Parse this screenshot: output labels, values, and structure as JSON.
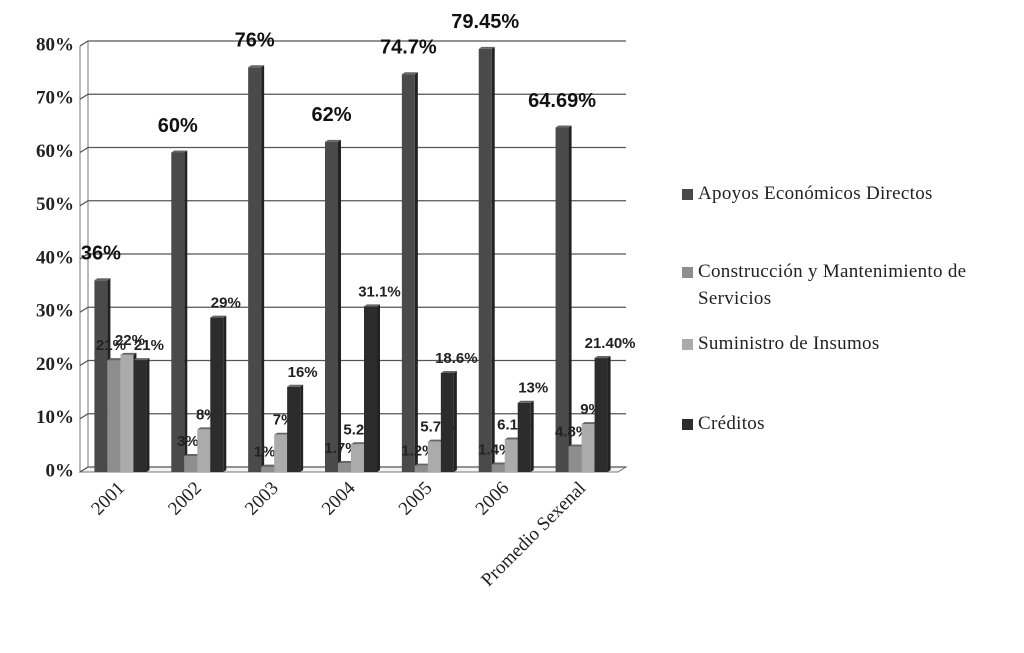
{
  "chart_data": {
    "type": "bar",
    "categories": [
      "2001",
      "2002",
      "2003",
      "2004",
      "2005",
      "2006",
      "Promedio Sexenal"
    ],
    "series": [
      {
        "name": "Apoyos Económicos Directos",
        "color": "#4a4a4a",
        "values": [
          36,
          60,
          76,
          62,
          74.7,
          79.45,
          64.69
        ],
        "value_labels": [
          "36%",
          "60%",
          "76%",
          "62%",
          "74.7%",
          "79.45%",
          "64.69%"
        ]
      },
      {
        "name": "Construcción y Mantenimiento de Servicios",
        "color": "#8e8e8e",
        "values": [
          21,
          3,
          1,
          1.7,
          1.2,
          1.4,
          4.8
        ],
        "value_labels": [
          "21%",
          "3%",
          "1%",
          "1.7%",
          "1.2%",
          "1.4%",
          "4.8%"
        ]
      },
      {
        "name": "Suministro de Insumos",
        "color": "#ababab",
        "values": [
          22,
          8,
          7,
          5.2,
          5.7,
          6.1,
          9
        ],
        "value_labels": [
          "22%",
          "8%",
          "7%",
          "5.2%",
          "5.7%",
          "6.1%",
          "9%"
        ]
      },
      {
        "name": "Créditos",
        "color": "#2c2c2c",
        "values": [
          21,
          29,
          16,
          31.1,
          18.6,
          13,
          21.4
        ],
        "value_labels": [
          "21%",
          "29%",
          "16%",
          "31.1%",
          "18.6%",
          "13%",
          "21.40%"
        ]
      }
    ],
    "ylim": [
      0,
      80
    ],
    "yticks": [
      {
        "value": 0,
        "label": "0%"
      },
      {
        "value": 10,
        "label": "10%"
      },
      {
        "value": 20,
        "label": "20%"
      },
      {
        "value": 30,
        "label": "30%"
      },
      {
        "value": 40,
        "label": "40%"
      },
      {
        "value": 50,
        "label": "50%"
      },
      {
        "value": 60,
        "label": "60%"
      },
      {
        "value": 70,
        "label": "70%"
      },
      {
        "value": 80,
        "label": "80%"
      }
    ],
    "grid": true,
    "legend": "right"
  }
}
